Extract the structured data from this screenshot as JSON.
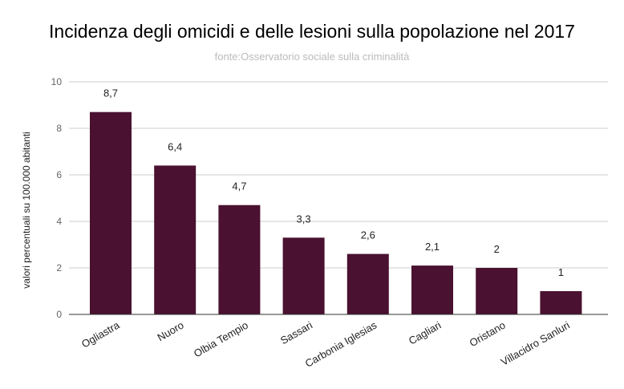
{
  "chart_data": {
    "type": "bar",
    "title": "Incidenza degli omicidi e delle lesioni sulla popolazione  nel 2017",
    "subtitle": "fonte:Osservatorio sociale sulla criminalità",
    "xlabel": "",
    "ylabel": "valori percentuali su 100.000 abitanti",
    "ylim": [
      0,
      10
    ],
    "yticks": [
      0,
      2,
      4,
      6,
      8,
      10
    ],
    "grid": true,
    "categories": [
      "Ogliastra",
      "Nuoro",
      "Olbia Tempio",
      "Sassari",
      "Carbonia Iglesias",
      "Cagliari",
      "Oristano",
      "Villacidro Sanluri"
    ],
    "values": [
      8.7,
      6.4,
      4.7,
      3.3,
      2.6,
      2.1,
      2,
      1
    ],
    "data_labels": [
      "8,7",
      "6,4",
      "4,7",
      "3,3",
      "2,6",
      "2,1",
      "2",
      "1"
    ],
    "bar_color": "#4a1130"
  }
}
